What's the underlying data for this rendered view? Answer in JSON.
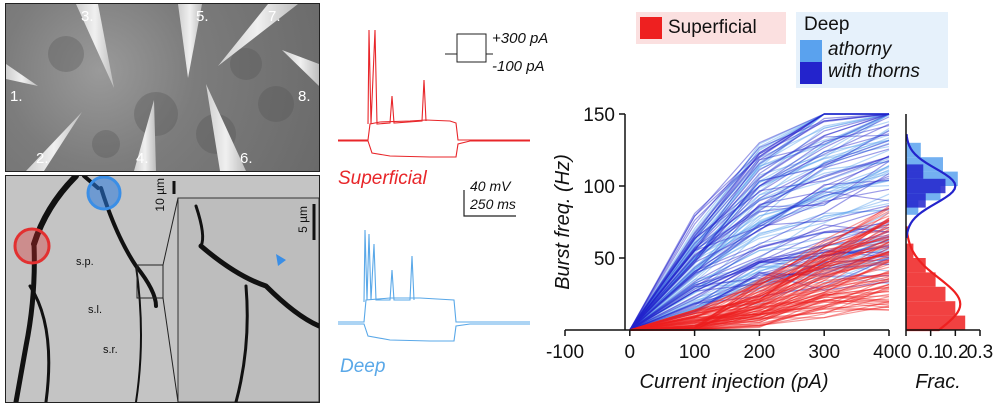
{
  "panel_a": {
    "pipette_numbers": [
      "1.",
      "2.",
      "3.",
      "4.",
      "5.",
      "6.",
      "7.",
      "8."
    ]
  },
  "panel_b": {
    "scalebar_main": "10 µm",
    "scalebar_inset": "5 µm",
    "layers": [
      "s.p.",
      "s.l.",
      "s.r."
    ]
  },
  "traces": {
    "current_top": "+300 pA",
    "current_bottom": "-100 pA",
    "label_superficial": "Superficial",
    "label_deep": "Deep",
    "scale_voltage": "40 mV",
    "scale_time": "250 ms",
    "colors": {
      "superficial": "#e8262a",
      "deep": "#5aa8e8"
    }
  },
  "legend": {
    "superficial": "Superficial",
    "deep": "Deep",
    "athorny": "athorny",
    "with_thorns": "with thorns",
    "colors": {
      "superficial": "#ee2020",
      "athorny": "#5aa2ee",
      "with_thorns": "#2323cc"
    }
  },
  "chart_data": [
    {
      "type": "line",
      "ylabel": "Burst freq. (Hz)",
      "xlabel": "Current injection (pA)",
      "xlim": [
        -100,
        400
      ],
      "ylim": [
        0,
        150
      ],
      "x_ticks": [
        "-100",
        "0",
        "100",
        "200",
        "300",
        "400"
      ],
      "y_ticks": [
        "50",
        "100",
        "150"
      ],
      "series": [
        {
          "name": "Superficial",
          "x": [
            0,
            100,
            200,
            300,
            400
          ],
          "y": [
            0,
            5,
            18,
            35,
            50
          ]
        },
        {
          "name": "Deep",
          "x": [
            0,
            100,
            200,
            300,
            400
          ],
          "y": [
            0,
            45,
            80,
            100,
            115
          ]
        }
      ]
    },
    {
      "type": "bar",
      "xlabel": "Frac.",
      "x_ticks": [
        "0",
        "0.1",
        "0.2",
        "0.3"
      ],
      "xlim": [
        0,
        0.3
      ],
      "ylim": [
        0,
        150
      ],
      "series": [
        {
          "name": "Superficial",
          "bins": [
            0,
            10,
            20,
            30,
            40,
            50
          ],
          "values": [
            0.24,
            0.2,
            0.16,
            0.12,
            0.08,
            0.03
          ]
        },
        {
          "name": "athorny",
          "bins": [
            80,
            90,
            100,
            110,
            120
          ],
          "values": [
            0.05,
            0.14,
            0.21,
            0.15,
            0.06
          ]
        },
        {
          "name": "with thorns",
          "bins": [
            85,
            95,
            105
          ],
          "values": [
            0.08,
            0.16,
            0.07
          ]
        }
      ]
    }
  ]
}
